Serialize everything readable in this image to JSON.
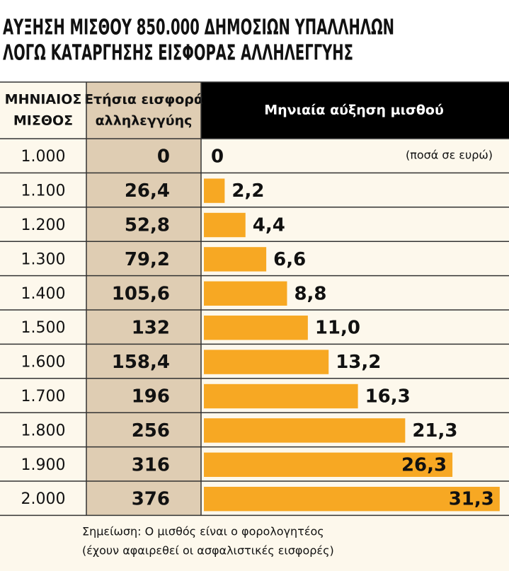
{
  "chart_data": {
    "type": "bar",
    "title_lines": [
      "ΑΥΞΗΣΗ ΜΙΣΘΟΥ 850.000 ΔΗΜΟΣΙΩΝ ΥΠΑΛΛΗΛΩΝ",
      "ΛΟΓΩ ΚΑΤΑΡΓΗΣΗΣ ΕΙΣΦΟΡΑΣ ΑΛΛΗΛΕΓΓΥΗΣ"
    ],
    "column_headers": [
      [
        "ΜΗΝΙΑΙΟΣ",
        "ΜΙΣΘΟΣ"
      ],
      [
        "Ετήσια εισφορά",
        "αλληλεγγύης"
      ],
      [
        "Μηνιαία αύξηση μισθού"
      ]
    ],
    "unit_note": "(ποσά σε ευρώ)",
    "categories": [
      "1.000",
      "1.100",
      "1.200",
      "1.300",
      "1.400",
      "1.500",
      "1.600",
      "1.700",
      "1.800",
      "1.900",
      "2.000"
    ],
    "contributions": [
      "0",
      "26,4",
      "52,8",
      "79,2",
      "105,6",
      "132",
      "158,4",
      "196",
      "256",
      "316",
      "376"
    ],
    "values": [
      0,
      2.2,
      4.4,
      6.6,
      8.8,
      11.0,
      13.2,
      16.3,
      21.3,
      26.3,
      31.3
    ],
    "value_labels": [
      "0",
      "2,2",
      "4,4",
      "6,6",
      "8,8",
      "11,0",
      "13,2",
      "16,3",
      "21,3",
      "26,3",
      "31,3"
    ],
    "color": "#f7a823",
    "notes": [
      "Σημείωση: Ο μισθός είναι ο φορολογητέος",
      "(έχουν αφαιρεθεί οι ασφαλιστικές εισφορές)"
    ]
  }
}
